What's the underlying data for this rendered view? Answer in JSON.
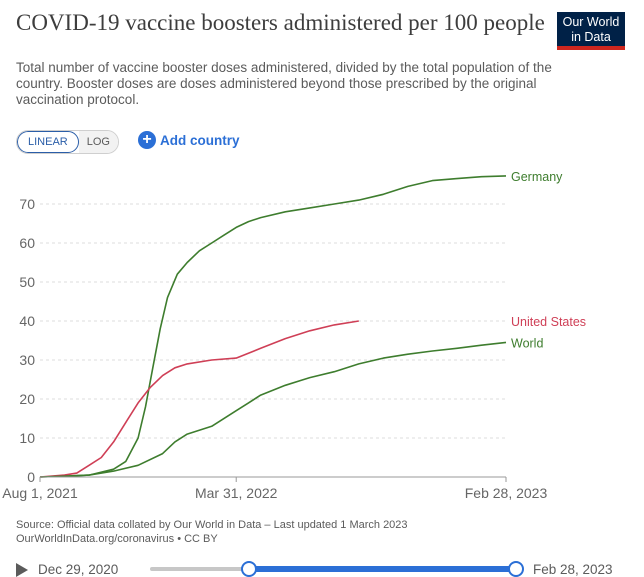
{
  "header": {
    "title": "COVID-19 vaccine boosters administered per 100 people",
    "subtitle": "Total number of vaccine booster doses administered, divided by the total population of the country. Booster doses are doses administered beyond those prescribed by the original vaccination protocol.",
    "logo_line1": "Our World",
    "logo_line2": "in Data"
  },
  "controls": {
    "linear_label": "LINEAR",
    "log_label": "LOG",
    "add_country_label": "Add country",
    "add_icon": "+"
  },
  "footer": {
    "source_line1": "Source: Official data collated by Our World in Data – Last updated 1 March 2023",
    "source_line2": "OurWorldInData.org/coronavirus • CC BY"
  },
  "timeline": {
    "start_label": "Dec 29, 2020",
    "end_label": "Feb 28, 2023",
    "range_start": "Aug 1, 2021",
    "range_end": "Feb 28, 2023"
  },
  "colors": {
    "germany": "#3e7d2e",
    "world": "#3e7d2e",
    "united_states": "#cf3f56",
    "grid": "#dddddd",
    "axis_text": "#666666",
    "accent": "#2b6fd6"
  },
  "chart_data": {
    "type": "line",
    "title": "COVID-19 vaccine boosters administered per 100 people",
    "x_unit": "months since Aug 1, 2021",
    "xlim": [
      0,
      19
    ],
    "ylim": [
      0,
      80
    ],
    "yticks": [
      0,
      10,
      20,
      30,
      40,
      50,
      60,
      70
    ],
    "xticks": [
      {
        "value": 0,
        "label": "Aug 1, 2021"
      },
      {
        "value": 8,
        "label": "Mar 31, 2022"
      },
      {
        "value": 19,
        "label": "Feb 28, 2023"
      }
    ],
    "grid": true,
    "series": [
      {
        "name": "Germany",
        "color": "#3e7d2e",
        "points": [
          [
            0,
            0
          ],
          [
            1,
            0.2
          ],
          [
            2,
            0.5
          ],
          [
            3,
            2
          ],
          [
            3.5,
            4
          ],
          [
            4,
            10
          ],
          [
            4.3,
            18
          ],
          [
            4.6,
            28
          ],
          [
            4.9,
            38
          ],
          [
            5.2,
            46
          ],
          [
            5.6,
            52
          ],
          [
            6,
            55
          ],
          [
            6.5,
            58
          ],
          [
            7,
            60
          ],
          [
            7.5,
            62
          ],
          [
            8,
            64
          ],
          [
            8.5,
            65.5
          ],
          [
            9,
            66.5
          ],
          [
            10,
            68
          ],
          [
            11,
            69
          ],
          [
            12,
            70
          ],
          [
            13,
            71
          ],
          [
            14,
            72.5
          ],
          [
            15,
            74.5
          ],
          [
            16,
            76
          ],
          [
            17,
            76.5
          ],
          [
            18,
            77
          ],
          [
            19,
            77.2
          ]
        ]
      },
      {
        "name": "United States",
        "color": "#cf3f56",
        "points": [
          [
            0,
            0
          ],
          [
            1,
            0.5
          ],
          [
            1.5,
            1
          ],
          [
            2,
            3
          ],
          [
            2.5,
            5
          ],
          [
            3,
            9
          ],
          [
            3.5,
            14
          ],
          [
            4,
            19
          ],
          [
            4.5,
            23
          ],
          [
            5,
            26
          ],
          [
            5.5,
            28
          ],
          [
            6,
            29
          ],
          [
            7,
            30
          ],
          [
            8,
            30.5
          ],
          [
            9,
            33
          ],
          [
            10,
            35.5
          ],
          [
            11,
            37.5
          ],
          [
            12,
            39
          ],
          [
            13,
            40
          ]
        ]
      },
      {
        "name": "World",
        "color": "#3e7d2e",
        "points": [
          [
            0,
            0
          ],
          [
            1,
            0.2
          ],
          [
            2,
            0.5
          ],
          [
            3,
            1.5
          ],
          [
            4,
            3
          ],
          [
            5,
            6
          ],
          [
            5.5,
            9
          ],
          [
            6,
            11
          ],
          [
            7,
            13
          ],
          [
            8,
            17
          ],
          [
            8.5,
            19
          ],
          [
            9,
            21
          ],
          [
            10,
            23.5
          ],
          [
            11,
            25.5
          ],
          [
            12,
            27
          ],
          [
            13,
            29
          ],
          [
            14,
            30.5
          ],
          [
            15,
            31.5
          ],
          [
            16,
            32.3
          ],
          [
            17,
            33
          ],
          [
            18,
            33.8
          ],
          [
            19,
            34.5
          ]
        ]
      }
    ]
  }
}
